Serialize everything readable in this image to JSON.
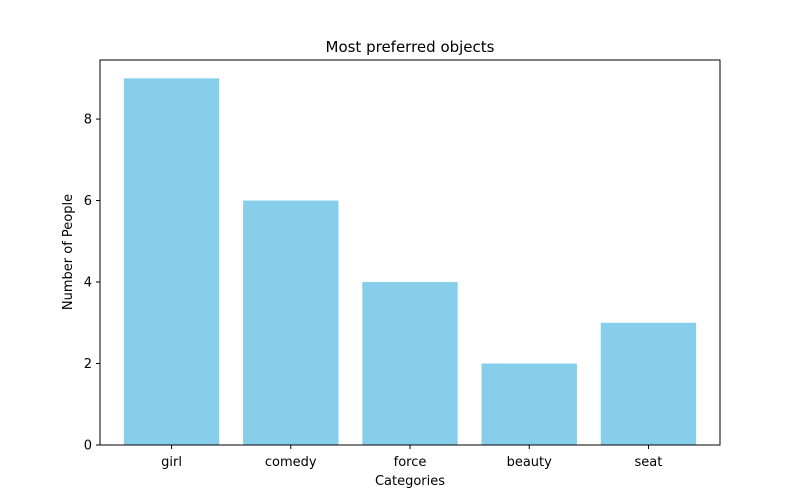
{
  "chart_data": {
    "type": "bar",
    "title": "Most preferred objects",
    "xlabel": "Categories",
    "ylabel": "Number of People",
    "categories": [
      "girl",
      "comedy",
      "force",
      "beauty",
      "seat"
    ],
    "values": [
      9,
      6,
      4,
      2,
      3
    ],
    "ylim": [
      0,
      9.45
    ],
    "yticks": [
      0,
      2,
      4,
      6,
      8
    ],
    "bar_color": "#87CEEB",
    "grid": false,
    "legend": false
  }
}
